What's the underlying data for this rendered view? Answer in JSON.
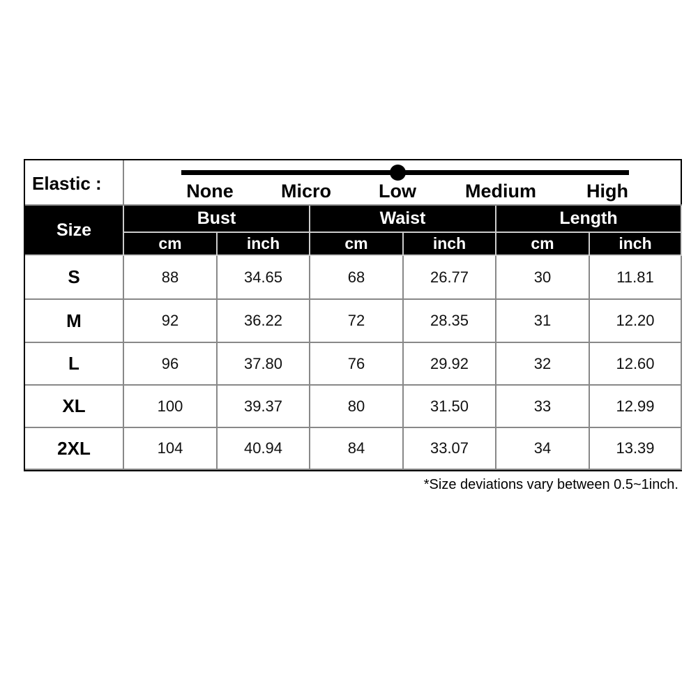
{
  "elastic": {
    "label": "Elastic :",
    "levels": [
      "None",
      "Micro",
      "Low",
      "Medium",
      "High"
    ],
    "selected": "Low"
  },
  "header": {
    "size": "Size",
    "groups": [
      "Bust",
      "Waist",
      "Length"
    ],
    "units": [
      "cm",
      "inch",
      "cm",
      "inch",
      "cm",
      "inch"
    ]
  },
  "rows": [
    {
      "size": "S",
      "values": [
        "88",
        "34.65",
        "68",
        "26.77",
        "30",
        "11.81"
      ]
    },
    {
      "size": "M",
      "values": [
        "92",
        "36.22",
        "72",
        "28.35",
        "31",
        "12.20"
      ]
    },
    {
      "size": "L",
      "values": [
        "96",
        "37.80",
        "76",
        "29.92",
        "32",
        "12.60"
      ]
    },
    {
      "size": "XL",
      "values": [
        "100",
        "39.37",
        "80",
        "31.50",
        "33",
        "12.99"
      ]
    },
    {
      "size": "2XL",
      "values": [
        "104",
        "40.94",
        "84",
        "33.07",
        "34",
        "13.39"
      ]
    }
  ],
  "note": "*Size deviations vary between 0.5~1inch."
}
